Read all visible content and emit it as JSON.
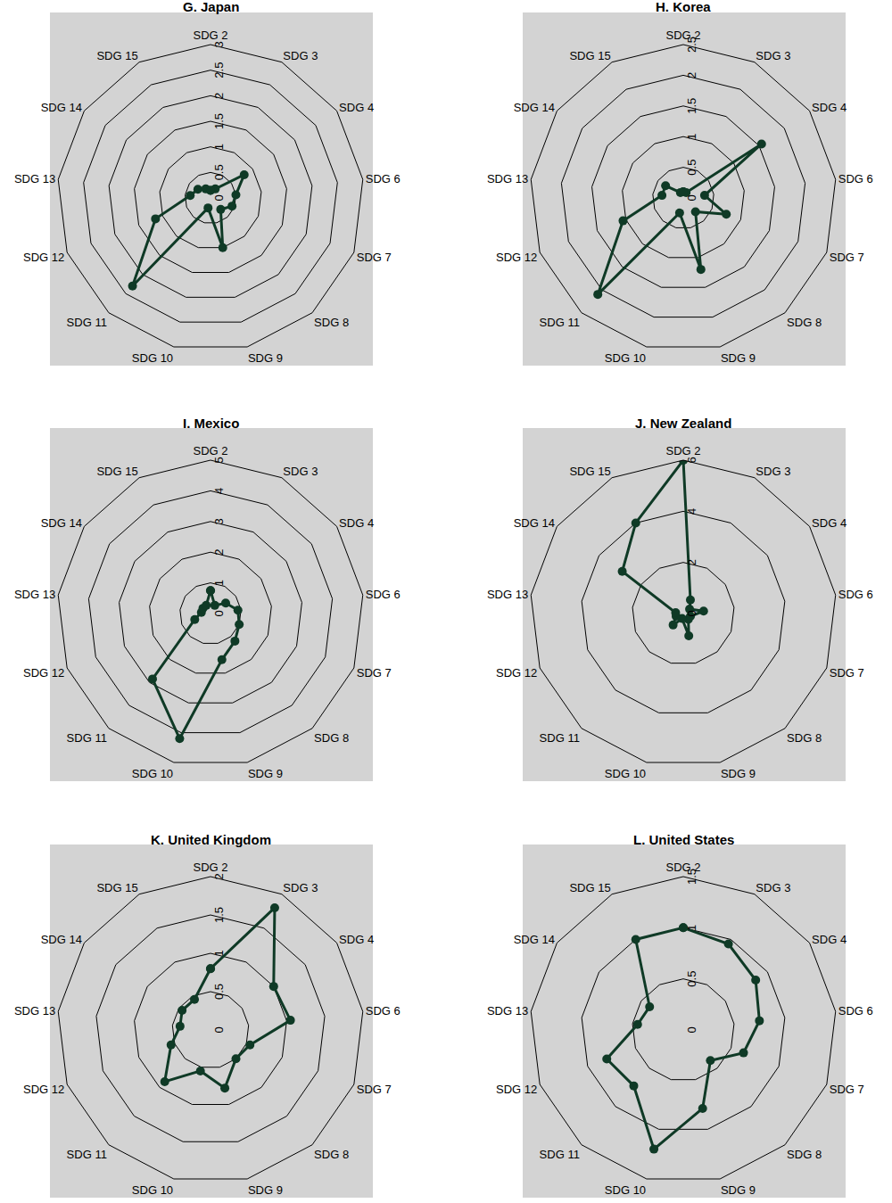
{
  "chart_data": [
    {
      "type": "radar",
      "title": "G. Japan",
      "categories": [
        "SDG 2",
        "SDG 3",
        "SDG 4",
        "SDG 6",
        "SDG 7",
        "SDG 8",
        "SDG 9",
        "SDG 10",
        "SDG 11",
        "SDG 12",
        "SDG 13",
        "SDG 14",
        "SDG 15"
      ],
      "values": [
        0.15,
        0.2,
        0.8,
        0.5,
        0.45,
        0.3,
        1.0,
        0.2,
        2.3,
        1.15,
        0.4,
        0.3,
        0.2
      ],
      "ylim": [
        0,
        3
      ],
      "yticks": [
        0,
        0.5,
        1,
        1.5,
        2,
        2.5,
        3
      ],
      "color": "#0f3a26",
      "marker": "circle",
      "grid": true
    },
    {
      "type": "radar",
      "title": "H. Korea",
      "categories": [
        "SDG 2",
        "SDG 3",
        "SDG 4",
        "SDG 6",
        "SDG 7",
        "SDG 8",
        "SDG 9",
        "SDG 10",
        "SDG 11",
        "SDG 12",
        "SDG 13",
        "SDG 14",
        "SDG 15"
      ],
      "values": [
        0.1,
        0.1,
        1.55,
        0.35,
        0.75,
        0.3,
        1.2,
        0.25,
        2.1,
        1.05,
        0.35,
        0.35,
        0.1
      ],
      "ylim": [
        0,
        2.5
      ],
      "yticks": [
        0,
        0.5,
        1,
        1.5,
        2,
        2.5
      ],
      "color": "#0f3a26",
      "marker": "circle",
      "grid": true
    },
    {
      "type": "radar",
      "title": "I. Mexico",
      "categories": [
        "SDG 2",
        "SDG 3",
        "SDG 4",
        "SDG 6",
        "SDG 7",
        "SDG 8",
        "SDG 9",
        "SDG 10",
        "SDG 11",
        "SDG 12",
        "SDG 13",
        "SDG 14",
        "SDG 15"
      ],
      "values": [
        0.75,
        0.3,
        0.6,
        0.9,
        1.0,
        1.2,
        1.55,
        4.2,
        2.85,
        0.55,
        0.3,
        0.3,
        0.3
      ],
      "ylim": [
        0,
        5
      ],
      "yticks": [
        0,
        1,
        2,
        3,
        4,
        5
      ],
      "color": "#0f3a26",
      "marker": "circle",
      "grid": true
    },
    {
      "type": "radar",
      "title": "J. New Zealand",
      "categories": [
        "SDG 2",
        "SDG 3",
        "SDG 4",
        "SDG 6",
        "SDG 7",
        "SDG 8",
        "SDG 9",
        "SDG 10",
        "SDG 11",
        "SDG 12",
        "SDG 13",
        "SDG 14",
        "SDG 15"
      ],
      "values": [
        6.0,
        0.6,
        0.3,
        0.8,
        0.3,
        0.3,
        0.9,
        0.2,
        0.6,
        0.3,
        0.3,
        2.9,
        4.0
      ],
      "ylim": [
        0,
        6
      ],
      "yticks": [
        0,
        2,
        4,
        6
      ],
      "color": "#0f3a26",
      "marker": "circle",
      "grid": true
    },
    {
      "type": "radar",
      "title": "K. United Kingdom",
      "categories": [
        "SDG 2",
        "SDG 3",
        "SDG 4",
        "SDG 6",
        "SDG 7",
        "SDG 8",
        "SDG 9",
        "SDG 10",
        "SDG 11",
        "SDG 12",
        "SDG 13",
        "SDG 14",
        "SDG 15"
      ],
      "values": [
        0.8,
        1.8,
        1.0,
        1.05,
        0.55,
        0.5,
        0.78,
        0.55,
        0.9,
        0.55,
        0.4,
        0.45,
        0.45
      ],
      "ylim": [
        0,
        2
      ],
      "yticks": [
        0,
        0.5,
        1,
        1.5,
        2
      ],
      "color": "#0f3a26",
      "marker": "circle",
      "grid": true
    },
    {
      "type": "radar",
      "title": "L. United States",
      "categories": [
        "SDG 2",
        "SDG 3",
        "SDG 4",
        "SDG 6",
        "SDG 7",
        "SDG 8",
        "SDG 9",
        "SDG 10",
        "SDG 11",
        "SDG 12",
        "SDG 13",
        "SDG 14",
        "SDG 15"
      ],
      "values": [
        1.0,
        0.95,
        0.86,
        0.75,
        0.63,
        0.4,
        0.79,
        1.2,
        0.73,
        0.8,
        0.45,
        0.4,
        1.0
      ],
      "ylim": [
        0,
        1.5
      ],
      "yticks": [
        0,
        0.5,
        1,
        1.5
      ],
      "color": "#0f3a26",
      "marker": "circle",
      "grid": true
    }
  ]
}
